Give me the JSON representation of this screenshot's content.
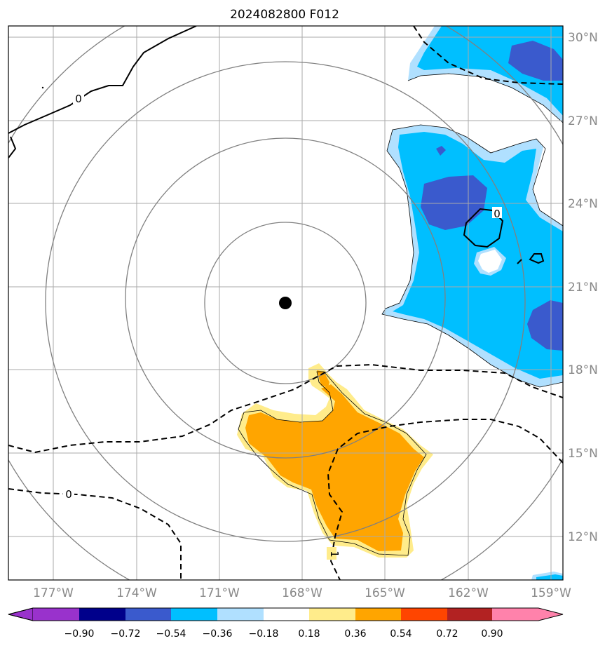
{
  "title": "2024082800 F012",
  "map": {
    "lon_ticks": [
      "177°W",
      "174°W",
      "171°W",
      "168°W",
      "165°W",
      "162°W",
      "159°W"
    ],
    "lat_ticks": [
      "30°N",
      "27°N",
      "24°N",
      "21°N",
      "18°N",
      "15°N",
      "12°N"
    ],
    "storm_center": {
      "lon": -168.0,
      "lat": 20.4
    },
    "range_rings_deg": [
      3,
      6,
      9,
      12
    ],
    "contour_labels": [
      "0",
      "0",
      "0",
      "1"
    ]
  },
  "colorbar": {
    "labels": [
      "−0.90",
      "−0.72",
      "−0.54",
      "−0.36",
      "−0.18",
      "0.18",
      "0.36",
      "0.54",
      "0.72",
      "0.90"
    ],
    "colors": [
      "#9932cc",
      "#00008b",
      "#3a5acd",
      "#00bfff",
      "#b0e0ff",
      "#ffffff",
      "#ffec8b",
      "#ffa500",
      "#ff4500",
      "#b22222",
      "#ff82ab"
    ]
  },
  "colors": {
    "dark_blue_fill": "#3a5acd",
    "blue_fill": "#00bfff",
    "light_blue_fill": "#b0e0ff",
    "orange_fill": "#ffa500",
    "yellow_fill": "#ffec8b",
    "grid": "#aaaaaa",
    "rings": "#808080"
  }
}
